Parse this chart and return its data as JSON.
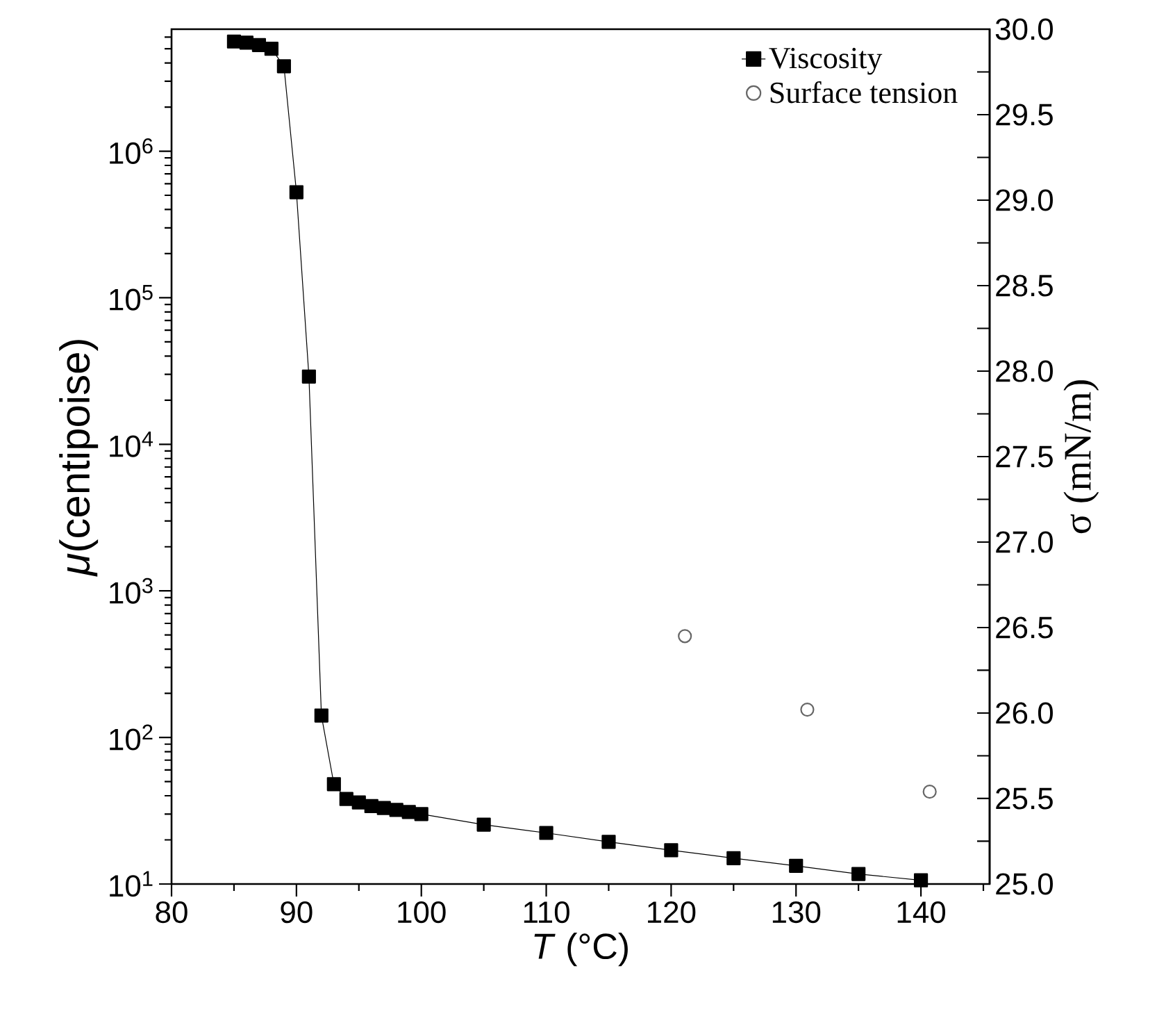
{
  "chart_data": {
    "type": "line",
    "xlabel": "*T* (°C)",
    "ylabel": "*μ*(centipoise)",
    "y2label": "σ (mN/m)",
    "log": "y",
    "legend": "top right",
    "xlim": [
      80,
      145.5
    ],
    "xticks": [
      80,
      90,
      100,
      110,
      120,
      130,
      140
    ],
    "ylim": [
      10,
      6800000
    ],
    "yticks": [
      {
        "value": 10,
        "label": "10$^{1}$"
      },
      {
        "value": 100,
        "label": "10$^{2}$"
      },
      {
        "value": 1000,
        "label": "10$^{3}$"
      },
      {
        "value": 10000,
        "label": "10$^{4}$"
      },
      {
        "value": 100000,
        "label": "10$^{5}$"
      },
      {
        "value": 1000000,
        "label": "10$^{6}$"
      }
    ],
    "y2lim": [
      25,
      30
    ],
    "y2ticks": [
      {
        "value": 25,
        "label": "25.0"
      },
      {
        "value": 25.5,
        "label": "25.5"
      },
      {
        "value": 26,
        "label": "26.0"
      },
      {
        "value": 26.5,
        "label": "26.5"
      },
      {
        "value": 27,
        "label": "27.0"
      },
      {
        "value": 27.5,
        "label": "27.5"
      },
      {
        "value": 28,
        "label": "28.0"
      },
      {
        "value": 28.5,
        "label": "28.5"
      },
      {
        "value": 29,
        "label": "29.0"
      },
      {
        "value": 29.5,
        "label": "29.5"
      },
      {
        "value": 30,
        "label": "30.0"
      }
    ],
    "series": [
      {
        "name": "Viscosity",
        "marker": "square",
        "color": "#000000",
        "x": [
          85,
          86,
          87,
          88,
          89,
          90,
          91,
          92,
          93,
          94,
          95,
          96,
          97,
          98,
          99,
          100,
          105,
          110,
          115,
          120,
          125,
          130,
          135,
          140
        ],
        "values": [
          5600000,
          5500000,
          5300000,
          5000000,
          3800000,
          525000,
          29000,
          141,
          48,
          38,
          36,
          34,
          33,
          32,
          31,
          30,
          25.4,
          22.3,
          19.4,
          17,
          15,
          13.3,
          11.7,
          10.6
        ]
      },
      {
        "name": "Surface tension",
        "type": "scatter",
        "marker": "circle",
        "axis": "y2",
        "color": "#666666",
        "x": [
          121.1,
          130.9,
          140.7
        ],
        "values": [
          26.45,
          26.02,
          25.54
        ]
      }
    ]
  }
}
